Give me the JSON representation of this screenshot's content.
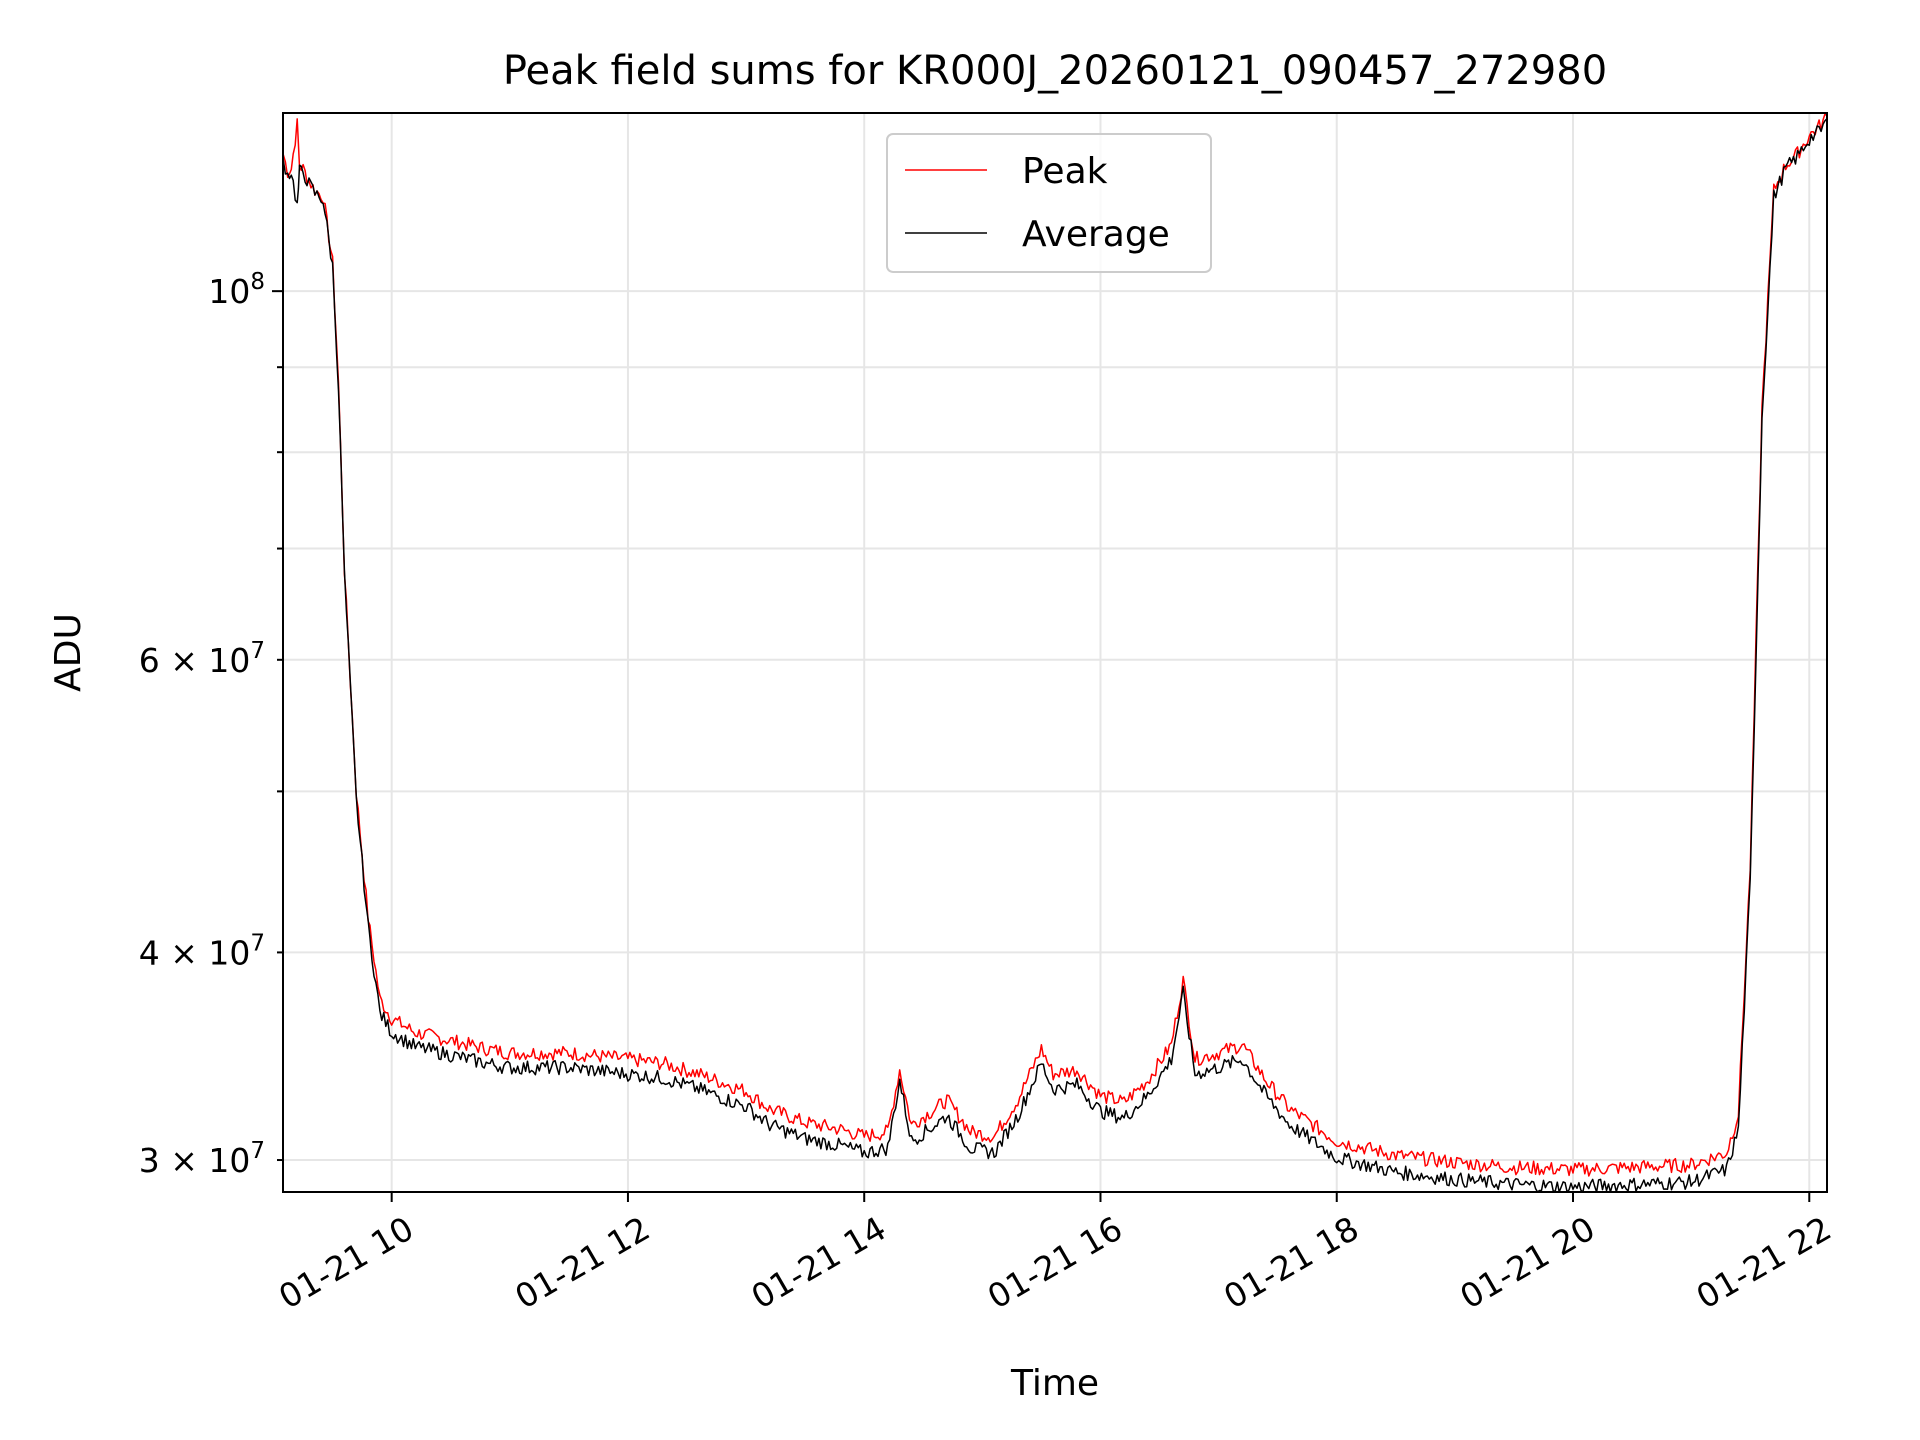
{
  "chart_data": {
    "type": "line",
    "title": "Peak field sums for KR000J_20260121_090457_272980",
    "xlabel": "Time",
    "ylabel": "ADU",
    "yscale": "log",
    "grid": true,
    "legend_placement": "top-center",
    "x_unit": "hours since 01-21 00:00",
    "xlim": [
      9.08,
      22.15
    ],
    "ylim": [
      28700000,
      128000000
    ],
    "x_ticks": [
      {
        "value": 10,
        "label": "01-21 10"
      },
      {
        "value": 12,
        "label": "01-21 12"
      },
      {
        "value": 14,
        "label": "01-21 14"
      },
      {
        "value": 16,
        "label": "01-21 16"
      },
      {
        "value": 18,
        "label": "01-21 18"
      },
      {
        "value": 20,
        "label": "01-21 20"
      },
      {
        "value": 22,
        "label": "01-21 22"
      }
    ],
    "y_major_ticks": [
      {
        "value": 100000000,
        "mantissa": "",
        "exponent": "8",
        "label": "10^8"
      }
    ],
    "y_minor_labeled_ticks": [
      {
        "value": 30000000,
        "mantissa": "3",
        "exponent": "7",
        "label": "3×10^7"
      },
      {
        "value": 40000000,
        "mantissa": "4",
        "exponent": "7",
        "label": "4×10^7"
      },
      {
        "value": 60000000,
        "mantissa": "6",
        "exponent": "7",
        "label": "6×10^7"
      }
    ],
    "y_minor_unlabeled_ticks": [
      50000000,
      70000000,
      80000000,
      90000000
    ],
    "series": [
      {
        "name": "Peak",
        "color": "#ff0000",
        "x": [
          9.08,
          9.12,
          9.15,
          9.2,
          9.22,
          9.25,
          9.3,
          9.35,
          9.42,
          9.5,
          9.55,
          9.6,
          9.7,
          9.8,
          9.9,
          10.0,
          10.2,
          10.5,
          10.8,
          11.0,
          11.5,
          12.0,
          12.3,
          12.6,
          13.0,
          13.2,
          13.5,
          13.8,
          14.0,
          14.2,
          14.3,
          14.4,
          14.6,
          14.7,
          14.9,
          15.1,
          15.3,
          15.5,
          15.6,
          15.8,
          16.0,
          16.2,
          16.4,
          16.6,
          16.7,
          16.8,
          17.0,
          17.2,
          17.4,
          17.6,
          18.0,
          18.5,
          19.0,
          19.5,
          20.0,
          20.5,
          21.0,
          21.3,
          21.4,
          21.5,
          21.6,
          21.7,
          21.8,
          21.9,
          22.0,
          22.1,
          22.15
        ],
        "y": [
          121000000,
          118000000,
          118500000,
          126000000,
          119000000,
          118500000,
          116500000,
          115000000,
          114000000,
          104000000,
          88000000,
          68000000,
          50000000,
          42000000,
          37500000,
          36500000,
          35800000,
          35400000,
          35000000,
          34800000,
          34800000,
          34500000,
          34300000,
          33800000,
          33000000,
          32200000,
          31600000,
          31300000,
          31000000,
          31200000,
          34000000,
          31500000,
          32200000,
          32600000,
          31200000,
          31000000,
          32600000,
          35000000,
          33800000,
          34000000,
          32800000,
          32500000,
          33500000,
          35200000,
          38500000,
          34500000,
          34800000,
          35200000,
          33500000,
          32200000,
          30800000,
          30200000,
          29900000,
          29700000,
          29600000,
          29700000,
          29800000,
          30300000,
          32000000,
          45000000,
          85000000,
          115000000,
          119000000,
          121000000,
          124000000,
          126000000,
          127500000
        ]
      },
      {
        "name": "Average",
        "color": "#000000",
        "x": [
          9.08,
          9.12,
          9.15,
          9.2,
          9.22,
          9.25,
          9.3,
          9.35,
          9.42,
          9.5,
          9.55,
          9.6,
          9.7,
          9.8,
          9.9,
          10.0,
          10.2,
          10.5,
          10.8,
          11.0,
          11.5,
          12.0,
          12.3,
          12.6,
          13.0,
          13.2,
          13.5,
          13.8,
          14.0,
          14.2,
          14.3,
          14.4,
          14.6,
          14.7,
          14.9,
          15.1,
          15.3,
          15.5,
          15.6,
          15.8,
          16.0,
          16.2,
          16.4,
          16.6,
          16.7,
          16.8,
          17.0,
          17.2,
          17.4,
          17.6,
          18.0,
          18.5,
          19.0,
          19.5,
          20.0,
          20.5,
          21.0,
          21.3,
          21.4,
          21.5,
          21.6,
          21.7,
          21.8,
          21.9,
          22.0,
          22.1,
          22.15
        ],
        "y": [
          120000000,
          117500000,
          118000000,
          112500000,
          118000000,
          118000000,
          116000000,
          114500000,
          113500000,
          103500000,
          87500000,
          67500000,
          49500000,
          41500000,
          36800000,
          35800000,
          35100000,
          34700000,
          34300000,
          34100000,
          34100000,
          33800000,
          33600000,
          33100000,
          32300000,
          31500000,
          30900000,
          30600000,
          30300000,
          30500000,
          33500000,
          30800000,
          31500000,
          31900000,
          30500000,
          30300000,
          31900000,
          34300000,
          33100000,
          33300000,
          32100000,
          31800000,
          32800000,
          34500000,
          37800000,
          33800000,
          34100000,
          34500000,
          32800000,
          31500000,
          30100000,
          29500000,
          29200000,
          29000000,
          28900000,
          29000000,
          29100000,
          29600000,
          31300000,
          44000000,
          84000000,
          114000000,
          118500000,
          120500000,
          123500000,
          125000000,
          127000000
        ]
      }
    ]
  }
}
